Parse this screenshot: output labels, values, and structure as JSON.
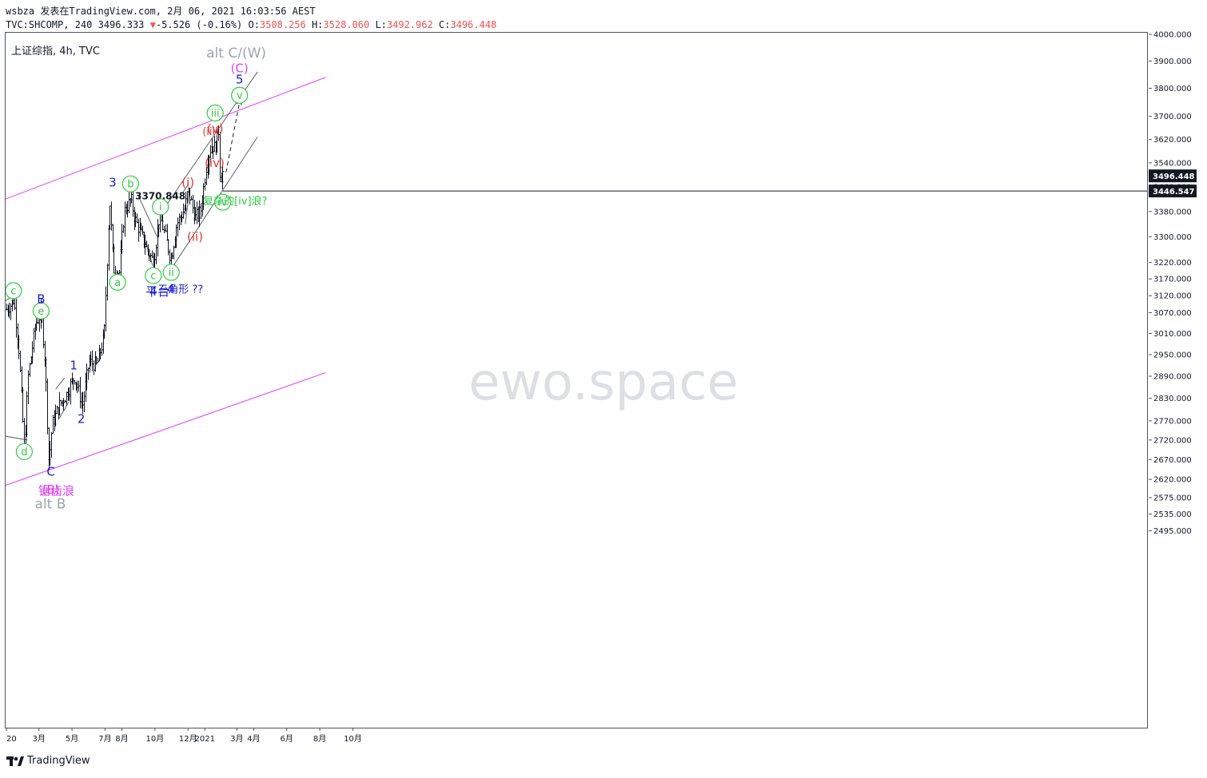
{
  "header": {
    "line1": "wsbza 发表在TradingView.com, 2月 06, 2021 16:03:56 AEST",
    "line2_prefix": "TVC:SHCOMP, 240 3496.333",
    "change_arrow": "▼",
    "change": "-5.526 (-0.16%)",
    "o_label": "O:",
    "o_value": "3508.256",
    "h_label": "H:",
    "h_value": "3528.060",
    "l_label": "L:",
    "l_value": "3492.962",
    "c_label": "C:",
    "c_value": "3496.448"
  },
  "symbol_label": "上证综指, 4h, TVC",
  "footer": {
    "brand": "TradingView"
  },
  "colors": {
    "channel": "#e040fb",
    "wave_blue": "#1a1ad8",
    "wave_green": "#2ecc40",
    "wave_red": "#e53935",
    "wave_magenta": "#e040fb",
    "wave_gray": "#9ea3ab",
    "candle": "#131722",
    "price_tag_bg": "#131722"
  },
  "chart_data": {
    "type": "bar",
    "title": "上证综指, 4h, TVC",
    "y_axis": {
      "min": 2460,
      "max": 4010,
      "scale": "log",
      "ticks": [
        2495,
        2535,
        2575,
        2620,
        2670,
        2720,
        2770,
        2830,
        2890,
        2950,
        3010,
        3070,
        3120,
        3170,
        3220,
        3300,
        3380,
        3460,
        3540,
        3620,
        3700,
        3800,
        3900,
        4000
      ],
      "tick_labels": [
        "2495.000",
        "2535.000",
        "2575.000",
        "2620.000",
        "2670.000",
        "2720.000",
        "2770.000",
        "2830.000",
        "2890.000",
        "2950.000",
        "3010.000",
        "3070.000",
        "3120.000",
        "3170.000",
        "3220.000",
        "3300.000",
        "3380.000",
        "3460.000",
        "3540.000",
        "3620.000",
        "3700.000",
        "3800.000",
        "3900.000",
        "4000.000"
      ]
    },
    "x_axis": {
      "ticks": [
        {
          "date": "2020-01-01",
          "label": "20"
        },
        {
          "date": "2020-03-01",
          "label": "3月"
        },
        {
          "date": "2020-05-01",
          "label": "5月"
        },
        {
          "date": "2020-07-01",
          "label": "7月"
        },
        {
          "date": "2020-08-01",
          "label": "8月"
        },
        {
          "date": "2020-10-01",
          "label": "10月"
        },
        {
          "date": "2020-12-01",
          "label": "12月"
        },
        {
          "date": "2021-01-01",
          "label": "2021"
        },
        {
          "date": "2021-03-01",
          "label": "3月"
        },
        {
          "date": "2021-04-01",
          "label": "4月"
        },
        {
          "date": "2021-06-01",
          "label": "6月"
        },
        {
          "date": "2021-08-01",
          "label": "8月"
        },
        {
          "date": "2021-10-01",
          "label": "10月"
        }
      ]
    },
    "price_path": [
      {
        "date": "2020-01-01",
        "price": 3080
      },
      {
        "date": "2020-01-10",
        "price": 3095
      },
      {
        "date": "2020-01-14",
        "price": 3110
      },
      {
        "date": "2020-01-23",
        "price": 2980
      },
      {
        "date": "2020-02-03",
        "price": 2690
      },
      {
        "date": "2020-02-10",
        "price": 2890
      },
      {
        "date": "2020-02-24",
        "price": 3040
      },
      {
        "date": "2020-03-05",
        "price": 3070
      },
      {
        "date": "2020-03-12",
        "price": 2930
      },
      {
        "date": "2020-03-19",
        "price": 2660
      },
      {
        "date": "2020-03-25",
        "price": 2760
      },
      {
        "date": "2020-04-07",
        "price": 2810
      },
      {
        "date": "2020-04-20",
        "price": 2840
      },
      {
        "date": "2020-05-05",
        "price": 2890
      },
      {
        "date": "2020-05-20",
        "price": 2810
      },
      {
        "date": "2020-06-01",
        "price": 2930
      },
      {
        "date": "2020-06-15",
        "price": 2920
      },
      {
        "date": "2020-06-29",
        "price": 3000
      },
      {
        "date": "2020-07-09",
        "price": 3420
      },
      {
        "date": "2020-07-16",
        "price": 3200
      },
      {
        "date": "2020-07-27",
        "price": 3190
      },
      {
        "date": "2020-08-05",
        "price": 3380
      },
      {
        "date": "2020-08-18",
        "price": 3420
      },
      {
        "date": "2020-08-24",
        "price": 3360
      },
      {
        "date": "2020-09-07",
        "price": 3300
      },
      {
        "date": "2020-09-14",
        "price": 3270
      },
      {
        "date": "2020-09-28",
        "price": 3220
      },
      {
        "date": "2020-10-09",
        "price": 3370
      },
      {
        "date": "2020-10-20",
        "price": 3300
      },
      {
        "date": "2020-10-30",
        "price": 3230
      },
      {
        "date": "2020-11-10",
        "price": 3340
      },
      {
        "date": "2020-11-25",
        "price": 3390
      },
      {
        "date": "2020-12-01",
        "price": 3450
      },
      {
        "date": "2020-12-14",
        "price": 3360
      },
      {
        "date": "2020-12-24",
        "price": 3380
      },
      {
        "date": "2021-01-05",
        "price": 3550
      },
      {
        "date": "2021-01-13",
        "price": 3600
      },
      {
        "date": "2021-01-20",
        "price": 3590
      },
      {
        "date": "2021-01-26",
        "price": 3650
      },
      {
        "date": "2021-01-29",
        "price": 3480
      },
      {
        "date": "2021-02-02",
        "price": 3510
      },
      {
        "date": "2021-02-05",
        "price": 3496
      }
    ],
    "price_tags": [
      {
        "label": "3496.448",
        "value": 3496.448
      },
      {
        "label": "3446.547",
        "value": 3446.547
      }
    ],
    "horizontal_line": {
      "value": 3446.547,
      "from_date": "2021-02-03"
    },
    "trendlines": [
      {
        "kind": "channel",
        "points": [
          {
            "date": "2019-12-30",
            "price": 3420
          },
          {
            "date": "2021-08-12",
            "price": 3840
          }
        ]
      },
      {
        "kind": "channel",
        "points": [
          {
            "date": "2019-12-30",
            "price": 2605
          },
          {
            "date": "2021-08-12",
            "price": 2900
          }
        ]
      },
      {
        "kind": "guide",
        "points": [
          {
            "date": "2020-10-11",
            "price": 3372
          },
          {
            "date": "2021-04-08",
            "price": 3860
          }
        ]
      },
      {
        "kind": "guide",
        "points": [
          {
            "date": "2020-10-31",
            "price": 3200
          },
          {
            "date": "2021-04-08",
            "price": 3628
          }
        ]
      },
      {
        "kind": "guide",
        "points": [
          {
            "date": "2020-08-31",
            "price": 3432
          },
          {
            "date": "2020-10-05",
            "price": 3300
          }
        ]
      },
      {
        "kind": "guide",
        "points": [
          {
            "date": "2020-09-05",
            "price": 3330
          },
          {
            "date": "2020-09-27",
            "price": 3210
          }
        ]
      },
      {
        "kind": "guide",
        "points": [
          {
            "date": "2019-12-30",
            "price": 3105
          },
          {
            "date": "2020-01-28",
            "price": 3134
          }
        ]
      },
      {
        "kind": "guide",
        "points": [
          {
            "date": "2019-12-30",
            "price": 2730
          },
          {
            "date": "2020-02-09",
            "price": 2720
          }
        ]
      },
      {
        "kind": "guide",
        "points": [
          {
            "date": "2020-04-01",
            "price": 2855
          },
          {
            "date": "2020-04-17",
            "price": 2885
          }
        ]
      },
      {
        "kind": "guide",
        "points": [
          {
            "date": "2020-04-08",
            "price": 2777
          },
          {
            "date": "2020-04-25",
            "price": 2820
          }
        ]
      },
      {
        "kind": "guide",
        "points": [
          {
            "date": "2020-11-21",
            "price": 3440
          },
          {
            "date": "2020-12-02",
            "price": 3470
          }
        ]
      },
      {
        "kind": "guide",
        "points": [
          {
            "date": "2020-11-26",
            "price": 3340
          },
          {
            "date": "2020-12-03",
            "price": 3440
          }
        ]
      },
      {
        "kind": "projection",
        "points": [
          {
            "date": "2021-02-09",
            "price": 3508
          },
          {
            "date": "2021-03-07",
            "price": 3760
          }
        ]
      }
    ],
    "annotations": [
      {
        "text": "c",
        "date": "2020-01-14",
        "price": 3135,
        "color": "green",
        "circled": true
      },
      {
        "text": "d",
        "date": "2020-02-03",
        "price": 2690,
        "color": "green",
        "circled": true
      },
      {
        "text": "e",
        "date": "2020-03-05",
        "price": 3075,
        "color": "green",
        "circled": true
      },
      {
        "text": "B",
        "date": "2020-03-05",
        "price": 3110,
        "color": "blue"
      },
      {
        "text": "C",
        "date": "2020-03-23",
        "price": 2640,
        "color": "blue"
      },
      {
        "text": "(B)",
        "date": "2020-03-23",
        "price": 2595,
        "color": "magenta"
      },
      {
        "text": "锯齿浪",
        "date": "2020-04-02",
        "price": 2592,
        "color": "magenta"
      },
      {
        "text": "alt B",
        "date": "2020-03-22",
        "price": 2560,
        "color": "gray"
      },
      {
        "text": "1",
        "date": "2020-05-04",
        "price": 2920,
        "color": "blue"
      },
      {
        "text": "2",
        "date": "2020-05-18",
        "price": 2775,
        "color": "blue"
      },
      {
        "text": "3",
        "date": "2020-07-15",
        "price": 3475,
        "color": "blue"
      },
      {
        "text": "a",
        "date": "2020-07-24",
        "price": 3160,
        "color": "green",
        "circled": true
      },
      {
        "text": "b",
        "date": "2020-08-17",
        "price": 3470,
        "color": "green",
        "circled": true
      },
      {
        "text": "c",
        "date": "2020-09-28",
        "price": 3180,
        "color": "green",
        "circled": true
      },
      {
        "text": "4",
        "date": "2020-09-28",
        "price": 3133,
        "color": "blue"
      },
      {
        "text": "平台",
        "date": "2020-10-06",
        "price": 3133,
        "color": "blue"
      },
      {
        "text": "3370.848",
        "date": "2020-10-11",
        "price": 3430,
        "color": "dark"
      },
      {
        "text": "i",
        "date": "2020-10-11",
        "price": 3395,
        "color": "green",
        "circled": true
      },
      {
        "text": "ii",
        "date": "2020-10-31",
        "price": 3190,
        "color": "green",
        "circled": true
      },
      {
        "text": "4",
        "date": "2020-10-30",
        "price": 3140,
        "color": "blue"
      },
      {
        "text": "三角形 ??",
        "date": "2020-11-17",
        "price": 3140,
        "color": "blue"
      },
      {
        "text": "(i)",
        "date": "2020-12-01",
        "price": 3475,
        "color": "red"
      },
      {
        "text": "(ii)",
        "date": "2020-12-14",
        "price": 3300,
        "color": "red"
      },
      {
        "text": "(iii)",
        "date": "2021-01-12",
        "price": 3648,
        "color": "red"
      },
      {
        "text": "(v)",
        "date": "2021-01-20",
        "price": 3658,
        "color": "red"
      },
      {
        "text": "iii",
        "date": "2021-01-20",
        "price": 3712,
        "color": "green",
        "circled": true
      },
      {
        "text": "(iv)",
        "date": "2021-01-19",
        "price": 3540,
        "color": "red"
      },
      {
        "text": "iv",
        "date": "2021-02-03",
        "price": 3410,
        "color": "green",
        "circled": true
      },
      {
        "text": "复杂的[iv]浪?",
        "date": "2021-02-26",
        "price": 3415,
        "color": "green"
      },
      {
        "text": "v",
        "date": "2021-03-06",
        "price": 3775,
        "color": "green",
        "circled": true
      },
      {
        "text": "5",
        "date": "2021-03-06",
        "price": 3832,
        "color": "blue"
      },
      {
        "text": "(C)",
        "date": "2021-03-06",
        "price": 3873,
        "color": "magenta"
      },
      {
        "text": "alt C/(W)",
        "date": "2021-02-28",
        "price": 3930,
        "color": "gray"
      }
    ],
    "watermark": "ewo.space"
  }
}
